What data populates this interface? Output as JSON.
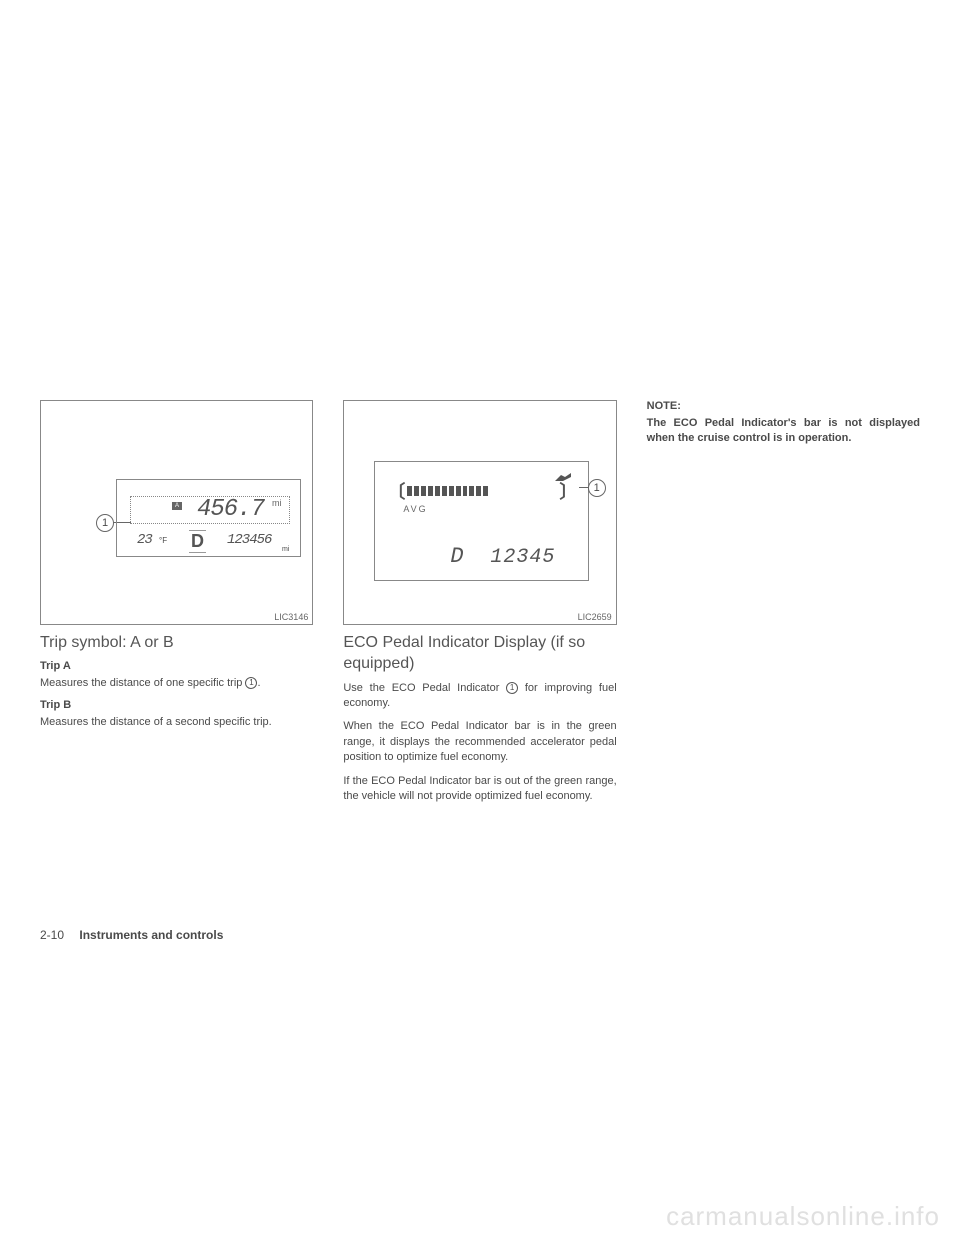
{
  "figure1": {
    "label": "LIC3146",
    "callout": "1",
    "trip_badge": "A",
    "trip_value": "456.7",
    "trip_unit": "mi",
    "temp_value": "23",
    "temp_unit": "°F",
    "gear": "D",
    "odo_value": "123456",
    "odo_unit": "mi"
  },
  "figure2": {
    "label": "LIC2659",
    "callout": "1",
    "avg_label": "AVG",
    "gear": "D",
    "odo_value": "12345",
    "filled_segments": 12,
    "total_segments": 22
  },
  "col1": {
    "title": "Trip symbol: A or B",
    "trip_a_heading": "Trip A",
    "trip_a_text": "Measures the distance of one specific trip",
    "trip_a_ref": "1",
    "trip_a_period": ".",
    "trip_b_heading": "Trip B",
    "trip_b_text": "Measures the distance of a second specific trip."
  },
  "col2": {
    "title": "ECO Pedal Indicator Display (if so equipped)",
    "p1_before": "Use the ECO Pedal Indicator ",
    "p1_ref": "1",
    "p1_after": " for improving fuel economy.",
    "p2": "When the ECO Pedal Indicator bar is in the green range, it displays the recommended accelerator pedal position to optimize fuel economy.",
    "p3": "If the ECO Pedal Indicator bar is out of the green range, the vehicle will not provide optimized fuel economy."
  },
  "col3": {
    "note_heading": "NOTE:",
    "note_text": "The ECO Pedal Indicator's bar is not displayed when the cruise control is in operation."
  },
  "footer": {
    "page": "2-10",
    "section": "Instruments and controls"
  },
  "watermark": "carmanualsonline.info"
}
